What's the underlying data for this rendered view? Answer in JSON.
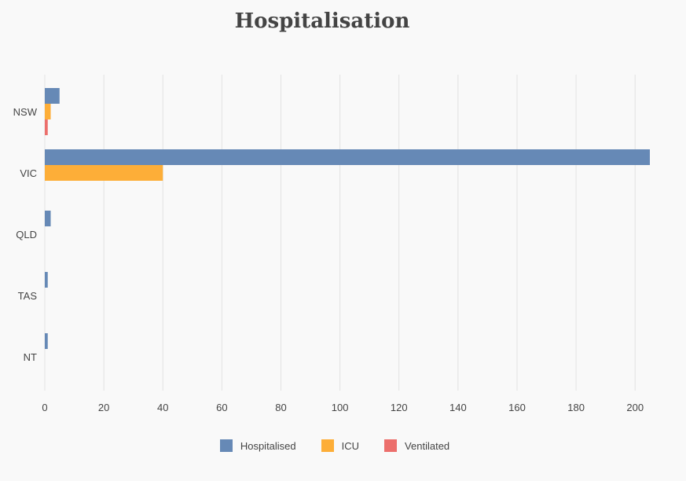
{
  "chart_data": {
    "type": "bar",
    "orientation": "horizontal",
    "title": "Hospitalisation",
    "categories": [
      "NSW",
      "VIC",
      "QLD",
      "TAS",
      "NT"
    ],
    "series": [
      {
        "name": "Hospitalised",
        "color": "#6689b6",
        "values": [
          5,
          205,
          2,
          1,
          1
        ]
      },
      {
        "name": "ICU",
        "color": "#fdae38",
        "values": [
          2,
          40,
          0,
          0,
          0
        ]
      },
      {
        "name": "Ventilated",
        "color": "#ec6f6c",
        "values": [
          1,
          0,
          0,
          0,
          0
        ]
      }
    ],
    "xlim": [
      0,
      205
    ],
    "xticks": [
      0,
      20,
      40,
      60,
      80,
      100,
      120,
      140,
      160,
      180,
      200
    ],
    "grid": true,
    "legend_position": "bottom-center"
  }
}
